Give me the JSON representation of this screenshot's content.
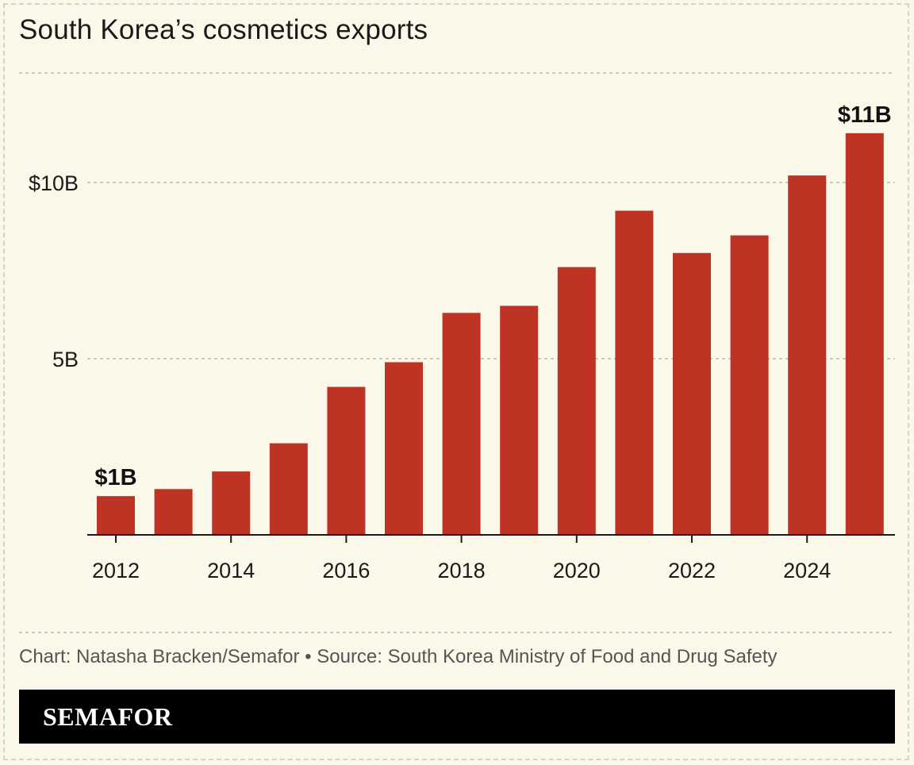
{
  "header": {
    "title": "South Korea’s cosmetics exports"
  },
  "footer": {
    "source": "Chart: Natasha Bracken/Semafor • Source: South Korea Ministry of Food and Drug Safety",
    "brand": "SEMAFOR"
  },
  "colors": {
    "bar": "#bf3324",
    "background": "#fbf8e9",
    "grid": "#bdb9ad"
  },
  "chart_data": {
    "type": "bar",
    "title": "South Korea’s cosmetics exports",
    "xlabel": "",
    "ylabel": "",
    "categories": [
      "2012",
      "2013",
      "2014",
      "2015",
      "2016",
      "2017",
      "2018",
      "2019",
      "2020",
      "2021",
      "2022",
      "2023",
      "2024",
      "2025"
    ],
    "values": [
      1.1,
      1.3,
      1.8,
      2.6,
      4.2,
      4.9,
      6.3,
      6.5,
      7.6,
      9.2,
      8.0,
      8.5,
      10.2,
      11.4
    ],
    "ylim": [
      0,
      13
    ],
    "yticks": [
      {
        "value": 5,
        "label": "5B"
      },
      {
        "value": 10,
        "label": "$10B"
      }
    ],
    "xtick_labels": [
      "2012",
      "2014",
      "2016",
      "2018",
      "2020",
      "2022",
      "2024"
    ],
    "annotations": [
      {
        "index": 0,
        "label": "$1B"
      },
      {
        "index": 13,
        "label": "$11B"
      }
    ],
    "grid": true,
    "legend": "none"
  }
}
